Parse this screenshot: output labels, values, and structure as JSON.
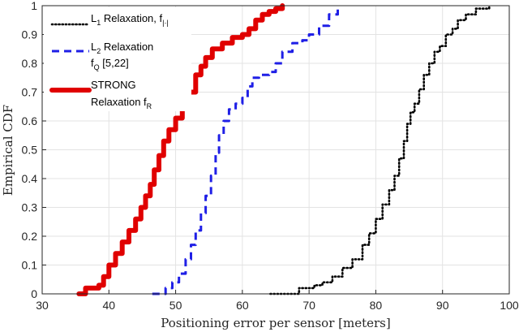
{
  "chart_data": {
    "type": "line",
    "xlabel": "Positioning error per sensor [meters]",
    "ylabel": "Empirical CDF",
    "xlim": [
      30,
      100
    ],
    "ylim": [
      0,
      1
    ],
    "xticks": [
      "30",
      "40",
      "50",
      "60",
      "70",
      "80",
      "90",
      "100"
    ],
    "yticks": [
      "0",
      "0.1",
      "0.2",
      "0.3",
      "0.4",
      "0.5",
      "0.6",
      "0.7",
      "0.8",
      "0.9",
      "1"
    ],
    "grid": true,
    "legend_position": "top-left",
    "series": [
      {
        "legend": [
          {
            "text": "L",
            "sub": false
          },
          {
            "text": "1",
            "sub": true
          },
          {
            "text": " Relaxation, f",
            "sub": false
          },
          {
            "text": "|·|",
            "sub": true
          }
        ],
        "color": "#000000",
        "style": "dotted",
        "x": [
          64.2,
          67.5,
          68.5,
          70.8,
          72.0,
          73.5,
          75.0,
          76.5,
          78.0,
          79.0,
          80.0,
          81.0,
          82.0,
          82.8,
          83.5,
          84.2,
          84.7,
          85.2,
          85.8,
          86.5,
          87.2,
          88.0,
          88.8,
          89.6,
          90.5,
          91.5,
          92.3,
          93.5,
          95.0,
          96.0,
          97.0
        ],
        "y": [
          0.0,
          0.0,
          0.02,
          0.03,
          0.04,
          0.06,
          0.09,
          0.12,
          0.17,
          0.21,
          0.26,
          0.31,
          0.36,
          0.41,
          0.47,
          0.53,
          0.59,
          0.63,
          0.66,
          0.71,
          0.76,
          0.8,
          0.84,
          0.86,
          0.9,
          0.92,
          0.95,
          0.97,
          0.99,
          0.99,
          1.0
        ]
      },
      {
        "legend": [
          {
            "text": "L",
            "sub": false
          },
          {
            "text": "2",
            "sub": true
          },
          {
            "text": " Relaxation",
            "sub": false
          }
        ],
        "legend2": [
          {
            "text": "f",
            "sub": false
          },
          {
            "text": "Q",
            "sub": true
          },
          {
            "text": " [5,22]",
            "sub": false
          }
        ],
        "color": "#1f1fe6",
        "style": "dashed",
        "x": [
          46.5,
          48.5,
          49.5,
          50.5,
          51.5,
          52.3,
          53.0,
          53.8,
          54.5,
          55.3,
          56.0,
          56.5,
          57.2,
          58.0,
          59.0,
          60.0,
          60.8,
          61.5,
          62.5,
          64.0,
          65.0,
          66.0,
          67.5,
          69.0,
          70.0,
          71.5,
          73.0,
          74.3
        ],
        "y": [
          0.0,
          0.02,
          0.04,
          0.07,
          0.12,
          0.17,
          0.22,
          0.28,
          0.34,
          0.41,
          0.49,
          0.55,
          0.6,
          0.64,
          0.66,
          0.68,
          0.72,
          0.75,
          0.76,
          0.77,
          0.8,
          0.84,
          0.87,
          0.88,
          0.9,
          0.93,
          0.97,
          1.0
        ]
      },
      {
        "legend": [
          {
            "text": "STRONG",
            "sub": false
          }
        ],
        "legend2": [
          {
            "text": "Relaxation f",
            "sub": false
          },
          {
            "text": "R",
            "sub": true
          }
        ],
        "color": "#e00000",
        "style": "solid",
        "x": [
          35.5,
          36.5,
          38.5,
          39.2,
          40.0,
          41.0,
          42.0,
          43.0,
          44.0,
          44.8,
          45.5,
          46.2,
          46.8,
          47.5,
          48.2,
          49.0,
          50.0,
          51.0,
          52.0,
          53.0,
          53.8,
          54.5,
          55.5,
          57.0,
          58.5,
          60.0,
          61.0,
          62.0,
          63.0,
          64.0,
          65.0,
          66.0
        ],
        "y": [
          0.0,
          0.02,
          0.03,
          0.06,
          0.1,
          0.14,
          0.18,
          0.22,
          0.26,
          0.3,
          0.34,
          0.38,
          0.43,
          0.48,
          0.53,
          0.57,
          0.61,
          0.65,
          0.7,
          0.76,
          0.79,
          0.82,
          0.85,
          0.87,
          0.89,
          0.9,
          0.92,
          0.95,
          0.97,
          0.98,
          0.99,
          1.0
        ]
      }
    ]
  }
}
